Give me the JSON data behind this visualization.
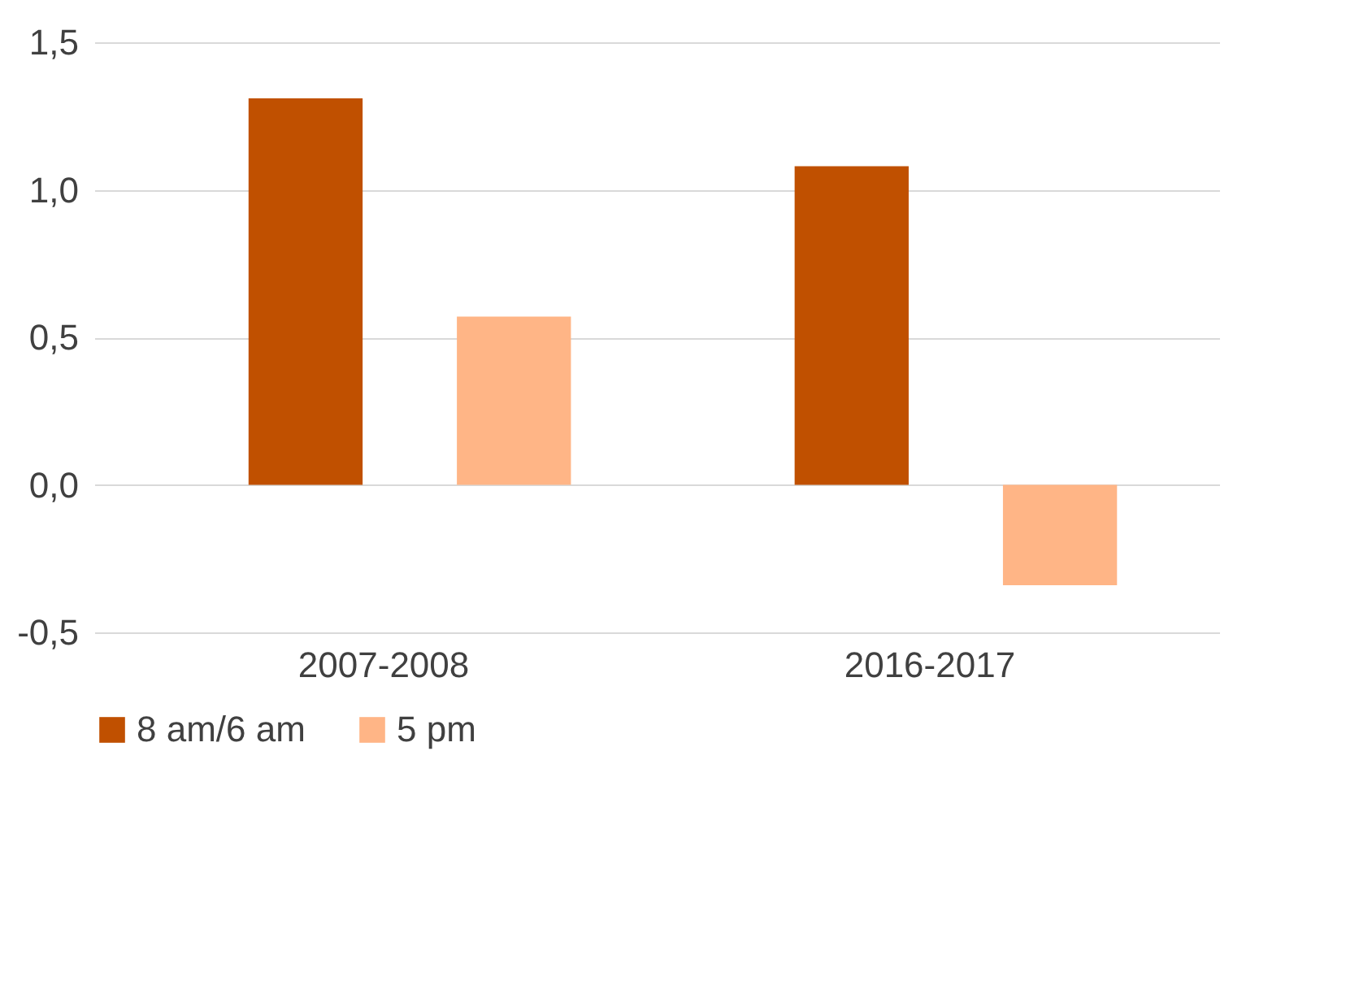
{
  "chart_data": {
    "type": "bar",
    "categories": [
      "2007-2008",
      "2016-2017"
    ],
    "series": [
      {
        "name": "8 am/6 am",
        "color": "#c05000",
        "values": [
          1.31,
          1.08
        ]
      },
      {
        "name": "5 pm",
        "color": "#ffb586",
        "values": [
          0.57,
          -0.34
        ]
      }
    ],
    "ylim": [
      -0.5,
      1.5
    ],
    "yticks": [
      {
        "value": -0.5,
        "label": "-0,5"
      },
      {
        "value": 0,
        "label": "0,0"
      },
      {
        "value": 0.5,
        "label": "0,5"
      },
      {
        "value": 1,
        "label": "1,0"
      },
      {
        "value": 1.5,
        "label": "1,5"
      }
    ],
    "grid": "y",
    "legend": "bottom"
  }
}
